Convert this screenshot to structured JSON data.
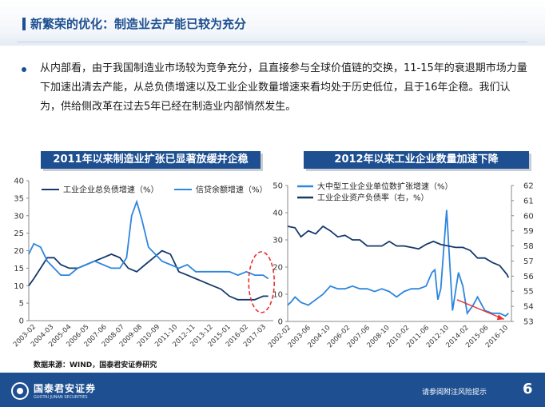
{
  "title": "新繁荣的优化：制造业去产能已较为充分",
  "bullet": "从内部看，由于我国制造业市场较为竞争充分，且直接参与全球价值链的交换，11-15年的衰退期市场力量下加速出清去产能，从总负债增速以及工业企业数量增速来看均处于历史低位，且于16年企稳。我们认为，供给侧改革在过去5年已经在制造业内部悄然发生。",
  "source_note": "数据来源：WIND，国泰君安证券研究",
  "footer": {
    "logo_text": "国泰君安证券",
    "logo_sub": "GUOTAI JUNAN SECURITIES",
    "disclaimer": "请参阅附注风险提示",
    "page": "6"
  },
  "colors": {
    "dark_series": "#163a6c",
    "light_series": "#2e86de",
    "highlight": "#e8312f",
    "brand": "#1d4f91"
  },
  "chart_data": [
    {
      "type": "line",
      "title": "2011年以来制造业扩张已显著放缓并企稳",
      "y_ticks": [
        "40",
        "35",
        "30",
        "25",
        "20",
        "15",
        "10",
        "5",
        "0"
      ],
      "ylim": [
        0,
        40
      ],
      "x_ticks": [
        "2003-02",
        "2004-03",
        "2005-04",
        "2006-05",
        "2007-06",
        "2008-07",
        "2009-08",
        "2010-09",
        "2011-10",
        "2012-11",
        "2013-12",
        "2015-01",
        "2016-02",
        "2017-03"
      ],
      "annotation": "red-dashed-ellipse-2016-2017",
      "series": [
        {
          "name": "工业企业总负债增速（%）",
          "color": "dark",
          "x": [
            2003.1,
            2003.4,
            2003.8,
            2004.2,
            2004.6,
            2005.0,
            2005.5,
            2006.0,
            2006.5,
            2007.0,
            2007.5,
            2008.0,
            2008.5,
            2009.0,
            2009.5,
            2010.0,
            2010.5,
            2011.0,
            2011.5,
            2012.0,
            2012.5,
            2013.0,
            2013.5,
            2014.0,
            2014.5,
            2015.0,
            2015.5,
            2016.0,
            2016.5,
            2017.0,
            2017.3
          ],
          "y": [
            10,
            12,
            15,
            18,
            18,
            16,
            15,
            15,
            16,
            17,
            18,
            19,
            18,
            15,
            14,
            16,
            18,
            20,
            19,
            14,
            13,
            12,
            11,
            10,
            9,
            7,
            6,
            6,
            6,
            7,
            7
          ]
        },
        {
          "name": "信贷余额增速（%）",
          "color": "light",
          "x": [
            2003.1,
            2003.4,
            2003.8,
            2004.2,
            2004.6,
            2005.0,
            2005.5,
            2006.0,
            2006.5,
            2007.0,
            2007.5,
            2008.0,
            2008.5,
            2008.9,
            2009.2,
            2009.5,
            2009.8,
            2010.2,
            2010.6,
            2011.0,
            2011.5,
            2012.0,
            2012.5,
            2013.0,
            2013.5,
            2014.0,
            2014.5,
            2015.0,
            2015.5,
            2016.0,
            2016.5,
            2017.0,
            2017.3
          ],
          "y": [
            19,
            22,
            21,
            17,
            15,
            13,
            13,
            15,
            16,
            17,
            16,
            15,
            15,
            18,
            30,
            34,
            29,
            21,
            19,
            17,
            16,
            15,
            16,
            14,
            14,
            14,
            14,
            14,
            13,
            14,
            13,
            13,
            12
          ]
        }
      ]
    },
    {
      "type": "line",
      "title": "2012年以来工业企业数量加速下降",
      "y_ticks_left": [
        "50",
        "40",
        "30",
        "20",
        "10",
        "0"
      ],
      "ylim_left": [
        0,
        50
      ],
      "y_ticks_right": [
        "62",
        "61",
        "60",
        "59",
        "58",
        "57",
        "56",
        "55",
        "54",
        "53"
      ],
      "ylim_right": [
        53,
        62
      ],
      "x_ticks": [
        "2002-02",
        "2003-06",
        "2004-10",
        "2006-02",
        "2007-06",
        "2008-10",
        "2010-02",
        "2011-06",
        "2012-10",
        "2014-02",
        "2015-06",
        "2016-10"
      ],
      "annotation": "red-downward-trend-arrow-2013-2016",
      "series": [
        {
          "name": "大中型工业企业单位数扩张增速（%）",
          "color": "light",
          "axis": "left",
          "x": [
            2002.1,
            2002.3,
            2002.6,
            2003.0,
            2003.5,
            2004.0,
            2004.5,
            2005.0,
            2005.5,
            2006.0,
            2006.5,
            2007.0,
            2007.5,
            2008.0,
            2008.5,
            2009.0,
            2009.5,
            2010.0,
            2010.5,
            2011.0,
            2011.5,
            2011.9,
            2012.1,
            2012.3,
            2012.5,
            2012.9,
            2013.3,
            2013.7,
            2014.0,
            2014.3,
            2014.7,
            2015.0,
            2015.5,
            2016.0,
            2016.5,
            2016.9,
            2017.1
          ],
          "y": [
            6,
            7,
            9,
            7,
            6,
            8,
            10,
            13,
            12,
            12,
            13,
            12,
            12,
            11,
            12,
            11,
            9,
            11,
            12,
            12,
            13,
            18,
            19,
            8,
            12,
            41,
            4,
            18,
            13,
            3,
            6,
            9,
            4,
            3,
            3,
            2,
            3
          ]
        },
        {
          "name": "工业企业资产负债率（右，%）",
          "color": "dark",
          "axis": "right",
          "x": [
            2002.1,
            2002.6,
            2003.0,
            2003.5,
            2004.0,
            2004.5,
            2005.0,
            2005.5,
            2006.0,
            2006.5,
            2007.0,
            2007.5,
            2008.0,
            2008.5,
            2009.0,
            2009.5,
            2010.0,
            2010.5,
            2011.0,
            2011.5,
            2012.0,
            2012.5,
            2013.0,
            2013.5,
            2014.0,
            2014.5,
            2015.0,
            2015.5,
            2016.0,
            2016.5,
            2017.0,
            2017.1
          ],
          "y": [
            59.3,
            59.2,
            58.6,
            59.0,
            58.8,
            59.3,
            59.0,
            58.6,
            58.7,
            58.4,
            58.4,
            58.0,
            58.0,
            58.0,
            58.3,
            58.0,
            58.0,
            57.9,
            57.8,
            58.1,
            58.3,
            58.1,
            58.0,
            57.9,
            57.9,
            57.7,
            57.2,
            57.2,
            56.9,
            56.7,
            56.1,
            55.9
          ]
        }
      ]
    }
  ]
}
